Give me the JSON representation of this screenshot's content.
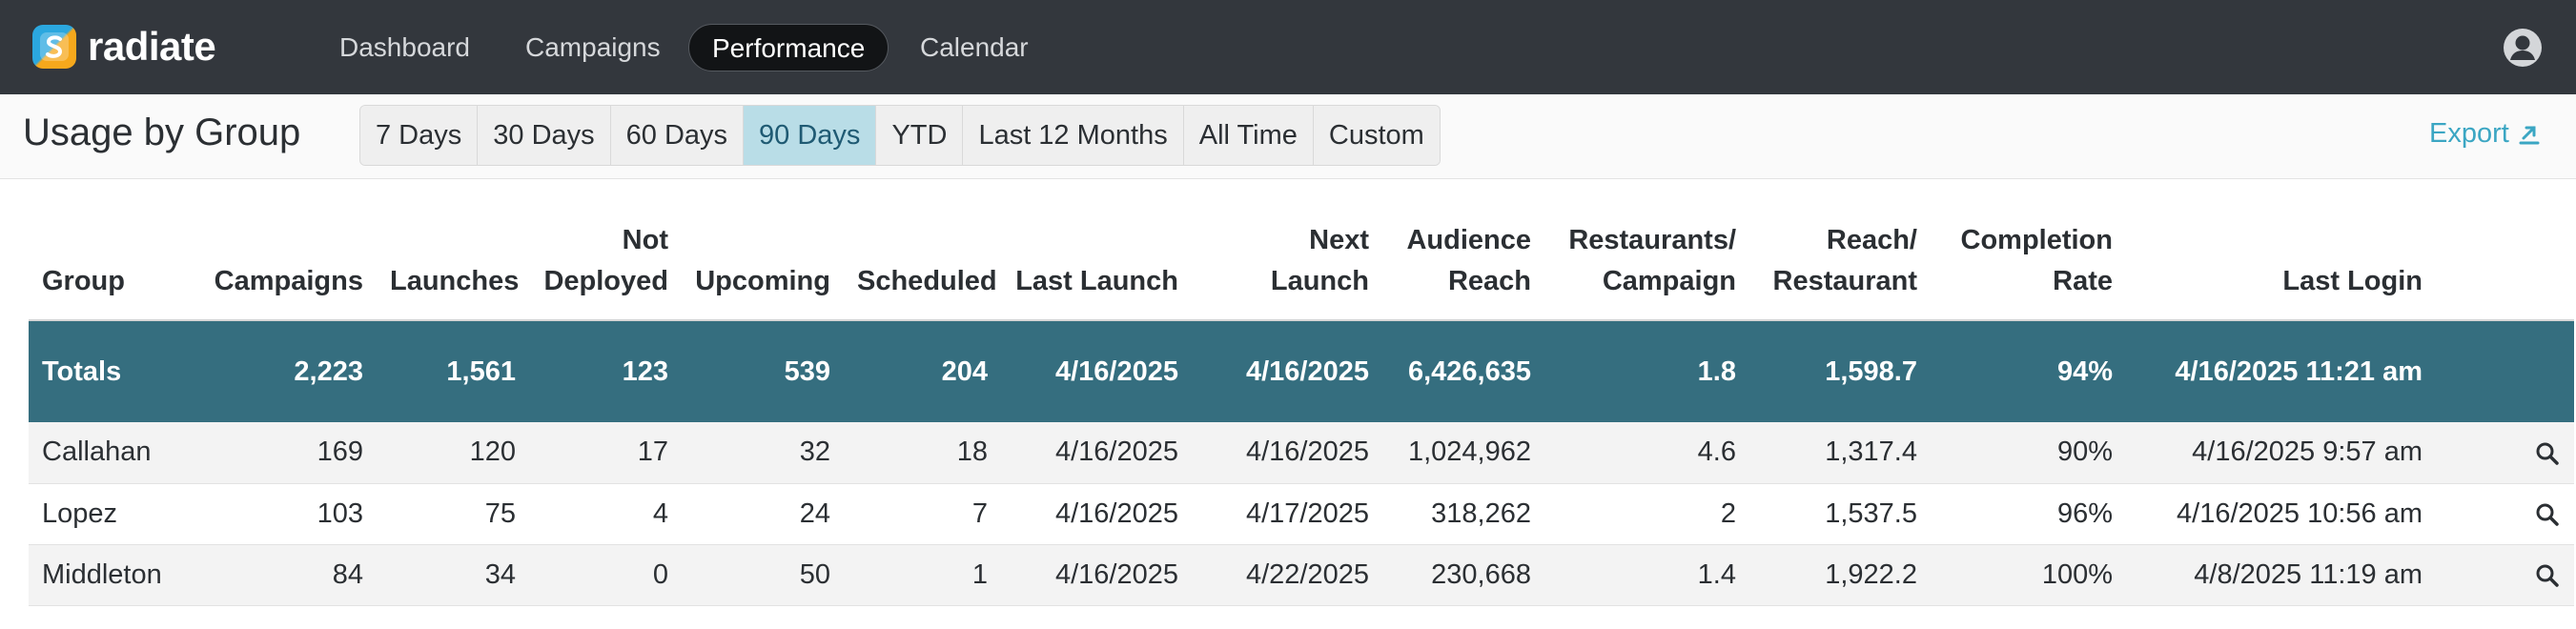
{
  "brand": {
    "name": "radiate"
  },
  "nav": {
    "items": [
      {
        "label": "Dashboard"
      },
      {
        "label": "Campaigns"
      },
      {
        "label": "Performance"
      },
      {
        "label": "Calendar"
      }
    ],
    "active": "Performance",
    "icons": {
      "user": "user-avatar-icon"
    }
  },
  "page": {
    "title": "Usage by Group"
  },
  "ranges": {
    "options": [
      "7 Days",
      "30 Days",
      "60 Days",
      "90 Days",
      "YTD",
      "Last 12 Months",
      "All Time",
      "Custom"
    ],
    "selected": "90 Days"
  },
  "export": {
    "label": "Export",
    "icon": "export-arrow-icon"
  },
  "table": {
    "columns": {
      "group": "Group",
      "campaigns": "Campaigns",
      "launches": "Launches",
      "not_deployed_1": "Not",
      "not_deployed_2": "Deployed",
      "upcoming": "Upcoming",
      "scheduled": "Scheduled",
      "last_launch": "Last Launch",
      "next_launch": "Next Launch",
      "audience_reach_1": "Audience",
      "audience_reach_2": "Reach",
      "rest_per_campaign_1": "Restaurants/",
      "rest_per_campaign_2": "Campaign",
      "reach_per_rest_1": "Reach/",
      "reach_per_rest_2": "Restaurant",
      "completion_1": "Completion",
      "completion_2": "Rate",
      "last_login": "Last Login"
    },
    "totals": {
      "group": "Totals",
      "campaigns": "2,223",
      "launches": "1,561",
      "not_deployed": "123",
      "upcoming": "539",
      "scheduled": "204",
      "last_launch": "4/16/2025",
      "next_launch": "4/16/2025",
      "audience_reach": "6,426,635",
      "rest_per_campaign": "1.8",
      "reach_per_rest": "1,598.7",
      "completion": "94%",
      "last_login": "4/16/2025 11:21 am"
    },
    "rows": [
      {
        "group": "Callahan",
        "campaigns": "169",
        "launches": "120",
        "not_deployed": "17",
        "upcoming": "32",
        "scheduled": "18",
        "last_launch": "4/16/2025",
        "next_launch": "4/16/2025",
        "audience_reach": "1,024,962",
        "rest_per_campaign": "4.6",
        "reach_per_rest": "1,317.4",
        "completion": "90%",
        "last_login": "4/16/2025 9:57 am"
      },
      {
        "group": "Lopez",
        "campaigns": "103",
        "launches": "75",
        "not_deployed": "4",
        "upcoming": "24",
        "scheduled": "7",
        "last_launch": "4/16/2025",
        "next_launch": "4/17/2025",
        "audience_reach": "318,262",
        "rest_per_campaign": "2",
        "reach_per_rest": "1,537.5",
        "completion": "96%",
        "last_login": "4/16/2025 10:56 am"
      },
      {
        "group": "Middleton",
        "campaigns": "84",
        "launches": "34",
        "not_deployed": "0",
        "upcoming": "50",
        "scheduled": "1",
        "last_launch": "4/16/2025",
        "next_launch": "4/22/2025",
        "audience_reach": "230,668",
        "rest_per_campaign": "1.4",
        "reach_per_rest": "1,922.2",
        "completion": "100%",
        "last_login": "4/8/2025 11:19 am"
      }
    ],
    "row_action_icon": "search-icon"
  },
  "colors": {
    "nav_bg": "#33373d",
    "totals_bg": "#356e7f",
    "accent": "#3ba6c3",
    "range_active_bg": "#b9dde7"
  }
}
